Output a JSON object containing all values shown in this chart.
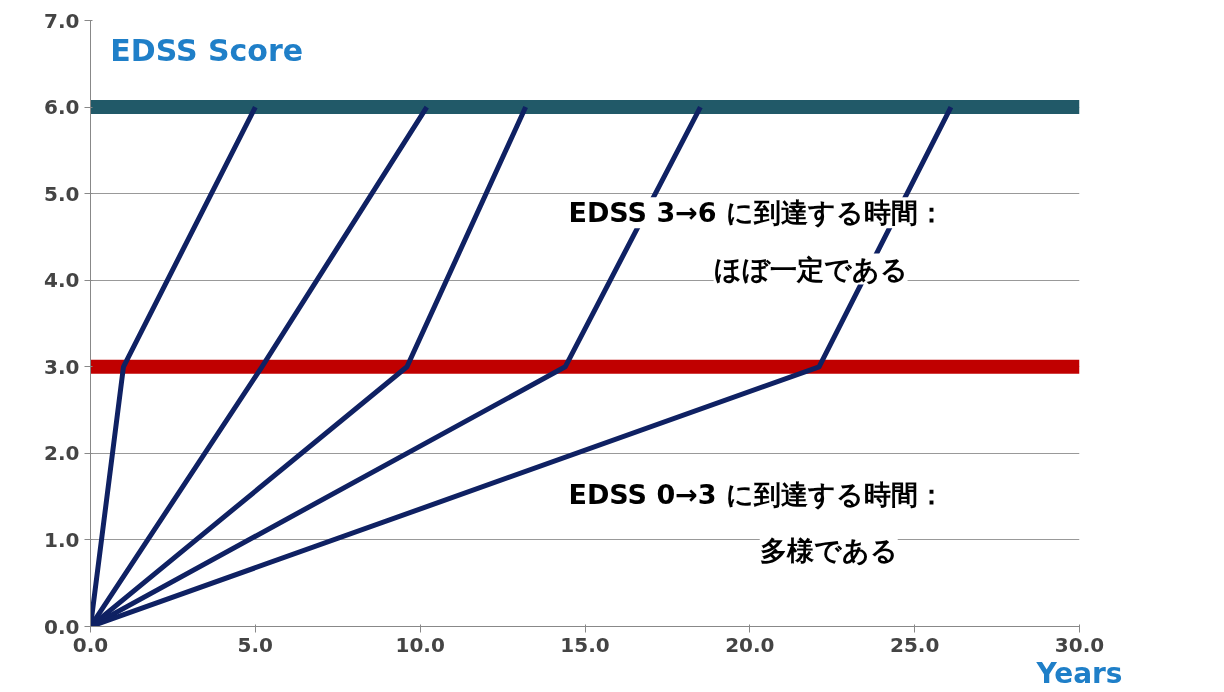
{
  "chart_data": {
    "type": "line",
    "title": "EDSS Score",
    "xlabel": "Years",
    "series": [
      {
        "color": "#0f2163",
        "x": [
          0,
          1.0,
          5.0
        ],
        "values": [
          0,
          3,
          6
        ]
      },
      {
        "color": "#0f2163",
        "x": [
          0,
          5.2,
          10.2
        ],
        "values": [
          0,
          3,
          6
        ]
      },
      {
        "color": "#0f2163",
        "x": [
          0,
          9.6,
          13.2
        ],
        "values": [
          0,
          3,
          6
        ]
      },
      {
        "color": "#0f2163",
        "x": [
          0,
          14.4,
          18.5
        ],
        "values": [
          0,
          3,
          6
        ]
      },
      {
        "color": "#0f2163",
        "x": [
          0,
          22.1,
          26.1
        ],
        "values": [
          0,
          3,
          6
        ]
      }
    ],
    "ref_lines": [
      {
        "axis": "y",
        "value": 6,
        "color": "#215968"
      },
      {
        "axis": "y",
        "value": 3,
        "color": "#c00000"
      }
    ],
    "annotations": [
      "EDSS 3→6 に到達する時間：",
      "ほぼ一定である",
      "EDSS 0→3 に到達する時間：",
      "多様である"
    ],
    "xlim": [
      0,
      30
    ],
    "ylim": [
      0,
      7
    ],
    "xticks": [
      {
        "value": 0,
        "label": "0.0"
      },
      {
        "value": 5,
        "label": "5.0"
      },
      {
        "value": 10,
        "label": "10.0"
      },
      {
        "value": 15,
        "label": "15.0"
      },
      {
        "value": 20,
        "label": "20.0"
      },
      {
        "value": 25,
        "label": "25.0"
      },
      {
        "value": 30,
        "label": "30.0"
      }
    ],
    "yticks": [
      {
        "value": 0,
        "label": "0.0"
      },
      {
        "value": 1,
        "label": "1.0"
      },
      {
        "value": 2,
        "label": "2.0"
      },
      {
        "value": 3,
        "label": "3.0"
      },
      {
        "value": 4,
        "label": "4.0"
      },
      {
        "value": 5,
        "label": "5.0"
      },
      {
        "value": 6,
        "label": "6.0"
      },
      {
        "value": 7,
        "label": "7.0"
      }
    ],
    "grid": "y",
    "line_style": "solid"
  }
}
